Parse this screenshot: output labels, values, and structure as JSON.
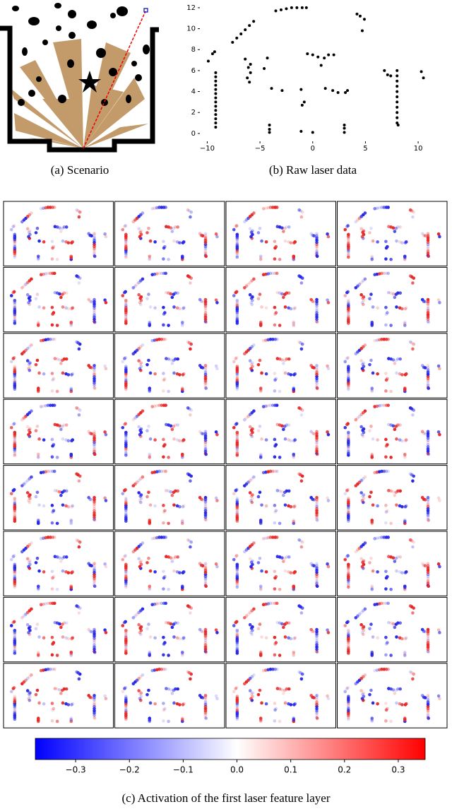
{
  "scenario": {
    "caption": "(a) Scenario"
  },
  "chart_data": [
    {
      "type": "scatter",
      "caption": "(b) Raw laser data",
      "color": "#000000",
      "x": [
        -9.2,
        -9.2,
        -9.2,
        -9.2,
        -9.2,
        -9.2,
        -9.2,
        -9.2,
        -9.2,
        -9.2,
        -9.2,
        -9.2,
        -9.2,
        -9.2,
        -9.9,
        -9.3,
        -9.5,
        -7.6,
        -7.2,
        -6.8,
        -6.4,
        -6.0,
        -5.6,
        -3.5,
        -3.0,
        -2.5,
        -2.0,
        -1.5,
        -1.0,
        -0.6,
        4.2,
        4.5,
        4.9,
        4.7,
        -6.0,
        -6.2,
        -5.9,
        -6.1,
        -5.9,
        -6.4,
        -4.3,
        -4.6,
        -0.5,
        0,
        0.5,
        0.8,
        1.1,
        1.5,
        2.0,
        -3.9,
        -2.9,
        -1.0,
        -0.8,
        -1.1,
        1.2,
        1.9,
        2.4,
        3.1,
        3.3,
        8,
        8,
        8,
        8,
        8,
        8,
        8,
        8,
        8,
        8,
        8,
        6.8,
        7.1,
        7.4,
        8.1,
        10.3,
        10.5,
        -4.1,
        -4.1,
        -4.1,
        3.0,
        3.0,
        3.0,
        -1.1,
        0
      ],
      "y": [
        0.6,
        1.0,
        1.4,
        1.8,
        2.2,
        2.6,
        3.0,
        3.4,
        3.8,
        4.2,
        4.6,
        5.0,
        5.4,
        5.8,
        6.9,
        7.8,
        7.6,
        8.7,
        9.1,
        9.5,
        9.9,
        10.3,
        10.7,
        11.7,
        11.8,
        11.9,
        12.0,
        12.0,
        12.0,
        12.0,
        11.4,
        11.2,
        10.9,
        9.8,
        4.9,
        5.3,
        5.8,
        6.3,
        6.6,
        7.1,
        7.2,
        6.2,
        7.6,
        7.5,
        7.3,
        6.5,
        7.2,
        7.5,
        7.5,
        4.3,
        4.1,
        2.7,
        3.0,
        4.2,
        4.3,
        4.1,
        3.9,
        3.9,
        4.1,
        1.0,
        1.5,
        2.0,
        2.5,
        3.0,
        3.5,
        4.0,
        4.5,
        5.0,
        5.5,
        6.0,
        6.0,
        5.6,
        5.5,
        0.8,
        5.9,
        5.3,
        0.1,
        0.4,
        0.8,
        0.1,
        0.5,
        0.8,
        0.2,
        0.1
      ],
      "xlim": [
        -10.7,
        11.2
      ],
      "ylim": [
        -0.75,
        12.4
      ],
      "xticks": [
        {
          "value": -10,
          "label": "−10"
        },
        {
          "value": -5,
          "label": "−5"
        },
        0,
        5,
        10
      ],
      "yticks": [
        0,
        2,
        4,
        6,
        8,
        10,
        12
      ]
    },
    {
      "type": "colorbar",
      "caption": "(c) Activation of the first laser feature layer",
      "colors": [
        "#0000ff",
        "#ffffff",
        "#ff0000"
      ],
      "clim": [
        -0.375,
        0.35
      ],
      "ticks": [
        {
          "value": -0.3,
          "label": "−0.3"
        },
        {
          "value": -0.2,
          "label": "−0.2"
        },
        {
          "value": -0.1,
          "label": "−0.1"
        },
        {
          "value": 0,
          "label": "0.0"
        },
        0.1,
        0.2,
        0.3
      ]
    }
  ]
}
